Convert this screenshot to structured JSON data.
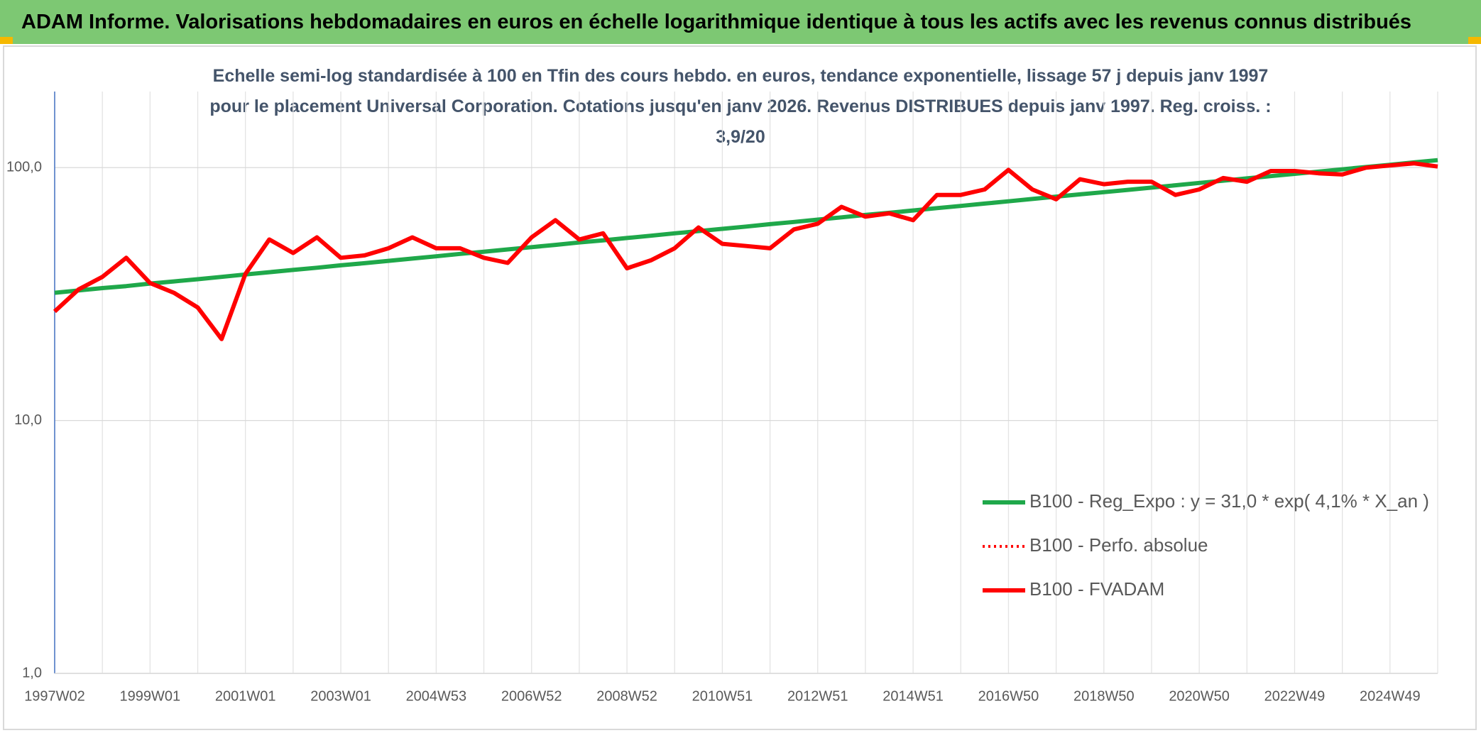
{
  "chart_data": {
    "type": "line",
    "title": "ADAM Informe. Valorisations hebdomadaires en euros en échelle logarithmique identique à tous les actifs avec les revenus connus distribués",
    "subtitle": "Echelle semi-log standardisée à 100 en Tfin des cours hebdo. en euros, tendance exponentielle, lissage 57 j depuis janv 1997 pour le placement Universal Corporation. Cotations jusqu'en janv 2026. Revenus DISTRIBUES depuis janv 1997. Reg. croiss. : 3,9/20",
    "categories": [
      "1997W02",
      null,
      null,
      null,
      "1999W01",
      null,
      null,
      null,
      "2001W01",
      null,
      null,
      null,
      "2003W01",
      null,
      null,
      null,
      "2004W53",
      null,
      null,
      null,
      "2006W52",
      null,
      null,
      null,
      "2008W52",
      null,
      null,
      null,
      "2010W51",
      null,
      null,
      null,
      "2012W51",
      null,
      null,
      null,
      "2014W51",
      null,
      null,
      null,
      "2016W50",
      null,
      null,
      null,
      "2018W50",
      null,
      null,
      null,
      "2020W50",
      null,
      null,
      null,
      "2022W49",
      null,
      null,
      null,
      "2024W49",
      null,
      null
    ],
    "log_scale": true,
    "ylim": [
      1,
      200
    ],
    "yticks": [
      {
        "value": 1,
        "label": "1,0"
      },
      {
        "value": 10,
        "label": "10,0"
      },
      {
        "value": 100,
        "label": "100,0"
      }
    ],
    "grid": true,
    "legend": "right",
    "series": [
      {
        "name": "B100 - Reg_Expo : y = 31,0 * exp( 4,1% *  X_an )",
        "color": "#1fa84a",
        "style": "solid",
        "values": [
          32.0,
          32.7,
          33.4,
          34.0,
          34.8,
          35.5,
          36.2,
          37.0,
          37.8,
          38.6,
          39.4,
          40.2,
          41.1,
          41.9,
          42.8,
          43.7,
          44.6,
          45.6,
          46.5,
          47.5,
          48.5,
          49.5,
          50.6,
          51.6,
          52.7,
          53.8,
          55.0,
          56.1,
          57.3,
          58.5,
          59.8,
          61.0,
          62.3,
          63.6,
          65.0,
          66.3,
          67.7,
          69.2,
          70.6,
          72.1,
          73.6,
          75.2,
          76.8,
          78.4,
          80.0,
          81.7,
          83.4,
          85.2,
          87.0,
          88.8,
          90.7,
          92.6,
          94.5,
          96.5,
          98.5,
          100.6,
          102.7,
          104.9,
          107.1
        ]
      },
      {
        "name": "B100 - Perfo. absolue",
        "color": "#ff0000",
        "style": "dotted",
        "values": [
          27,
          33,
          37,
          44,
          35,
          32,
          28,
          21,
          38,
          52,
          46,
          53,
          44,
          45,
          48,
          53,
          48,
          48,
          44,
          42,
          53,
          62,
          52,
          55,
          40,
          43,
          48,
          58,
          50,
          49,
          48,
          57,
          60,
          70,
          64,
          66,
          62,
          78,
          78,
          82,
          98,
          82,
          75,
          90,
          86,
          88,
          88,
          78,
          82,
          91,
          88,
          97,
          97,
          95,
          94,
          100,
          102,
          104,
          101
        ]
      },
      {
        "name": "B100 - FVADAM",
        "color": "#ff0000",
        "style": "solid",
        "values": [
          27,
          33,
          37,
          44,
          35,
          32,
          28,
          21,
          38,
          52,
          46,
          53,
          44,
          45,
          48,
          53,
          48,
          48,
          44,
          42,
          53,
          62,
          52,
          55,
          40,
          43,
          48,
          58,
          50,
          49,
          48,
          57,
          60,
          70,
          64,
          66,
          62,
          78,
          78,
          82,
          98,
          82,
          75,
          90,
          86,
          88,
          88,
          78,
          82,
          91,
          88,
          97,
          97,
          95,
          94,
          100,
          102,
          104,
          101
        ]
      }
    ]
  }
}
